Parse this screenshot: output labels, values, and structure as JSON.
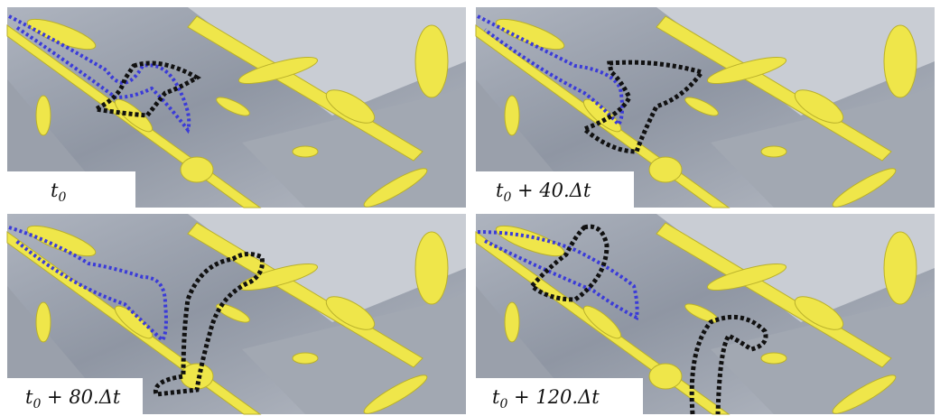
{
  "panels": [
    {
      "label": {
        "base": "t",
        "sub": "0"
      }
    },
    {
      "label": {
        "base": "t",
        "sub": "0",
        "rest": " + 40.Δt"
      }
    },
    {
      "label": {
        "base": "t",
        "sub": "0",
        "rest": " + 80.Δt"
      }
    },
    {
      "label": {
        "base": "t",
        "sub": "0",
        "rest": " + 120.Δt"
      }
    }
  ]
}
